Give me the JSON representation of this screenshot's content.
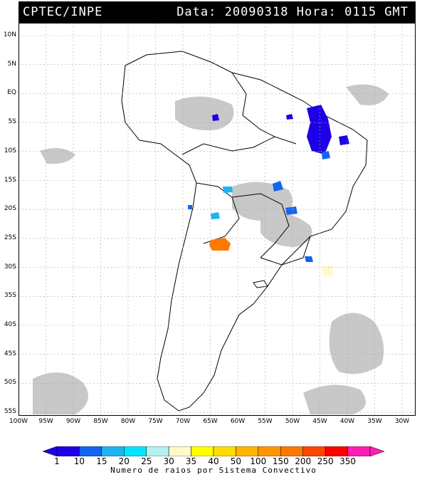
{
  "header": {
    "source": "CPTEC/INPE",
    "datetime": "Data: 20090318 Hora: 0115 GMT"
  },
  "map": {
    "lat_labels": [
      "10N",
      "5N",
      "EQ",
      "5S",
      "10S",
      "15S",
      "20S",
      "25S",
      "30S",
      "35S",
      "40S",
      "45S",
      "50S",
      "55S"
    ],
    "lon_labels": [
      "100W",
      "95W",
      "90W",
      "85W",
      "80W",
      "75W",
      "70W",
      "65W",
      "60W",
      "55W",
      "50W",
      "45W",
      "40W",
      "35W",
      "30W"
    ],
    "cloud_color": "#c8c8c8",
    "coast_color": "#000000",
    "grid_color": "#aaaaaa"
  },
  "colorbar": {
    "labels": [
      "1",
      "10",
      "15",
      "20",
      "25",
      "30",
      "35",
      "40",
      "50",
      "100",
      "150",
      "200",
      "250",
      "350"
    ],
    "colors": [
      "#1e00e6",
      "#1464f0",
      "#1eb4f0",
      "#00e6ff",
      "#b4f0f0",
      "#fffac8",
      "#ffff00",
      "#ffdc00",
      "#ffb400",
      "#ff9600",
      "#ff7800",
      "#ff4600",
      "#ff0000",
      "#ff1eb4"
    ],
    "title": "Numero de raios por Sistema Convectivo"
  }
}
